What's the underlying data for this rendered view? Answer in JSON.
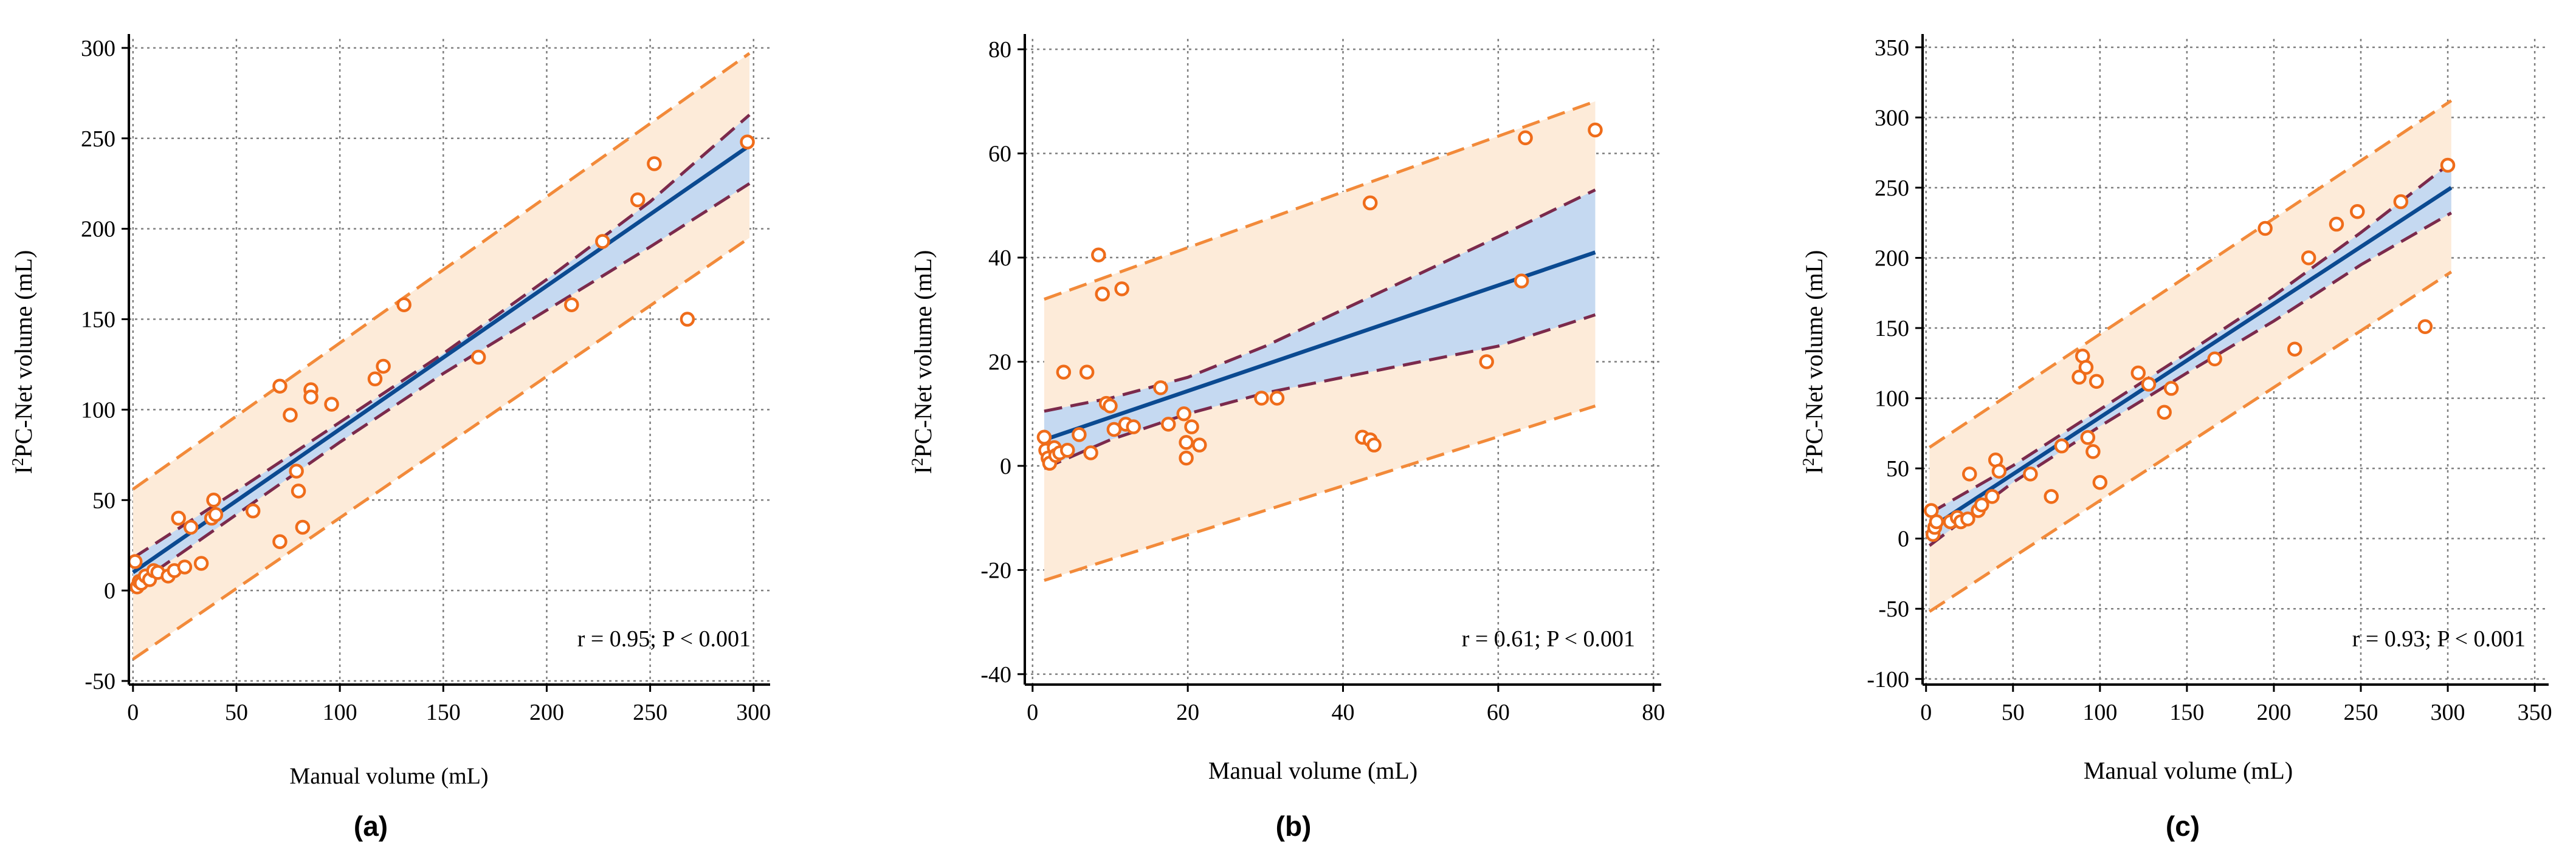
{
  "palette": {
    "pred_fill": "#fdebd9",
    "pred_line": "#f28a3a",
    "conf_fill": "#c5d9f1",
    "conf_line": "#7b2a4c",
    "fit_line": "#0b4a91",
    "point": "#ef6c1a",
    "grid": "#7f7f7f"
  },
  "chart_data": [
    {
      "type": "scatter",
      "panel": "(a)",
      "xlabel": "Manual volume (mL)",
      "ylabel_base": "I",
      "ylabel_sup": "2",
      "ylabel_rest": "PC-Net volume (mL)",
      "annotation": "r = 0.95; P < 0.001",
      "xlim": [
        -2,
        308
      ],
      "ylim": [
        -52,
        305
      ],
      "xticks": [
        0,
        50,
        100,
        150,
        200,
        250,
        300
      ],
      "yticks": [
        -50,
        0,
        50,
        100,
        150,
        200,
        250,
        300
      ],
      "xtick_labels": [
        "0",
        "50",
        "100",
        "150",
        "200",
        "250",
        "300"
      ],
      "ytick_labels": [
        "-50",
        "0",
        "50",
        "100",
        "150",
        "200",
        "250",
        "300"
      ],
      "fit_x": [
        0,
        298
      ],
      "fit_y": [
        10,
        246
      ],
      "conf_upper": [
        [
          0,
          18
        ],
        [
          50,
          55
        ],
        [
          100,
          93
        ],
        [
          150,
          131
        ],
        [
          200,
          172
        ],
        [
          250,
          215
        ],
        [
          298,
          263
        ]
      ],
      "conf_lower": [
        [
          0,
          2
        ],
        [
          50,
          42
        ],
        [
          100,
          82
        ],
        [
          150,
          120
        ],
        [
          200,
          155
        ],
        [
          250,
          190
        ],
        [
          298,
          225
        ]
      ],
      "pred_upper": [
        [
          0,
          56
        ],
        [
          298,
          297
        ]
      ],
      "pred_lower": [
        [
          0,
          -38
        ],
        [
          298,
          195
        ]
      ],
      "points": [
        [
          1,
          16
        ],
        [
          2,
          2
        ],
        [
          3,
          5
        ],
        [
          4,
          4
        ],
        [
          6,
          8
        ],
        [
          8,
          6
        ],
        [
          10,
          11
        ],
        [
          12,
          10
        ],
        [
          17,
          8
        ],
        [
          20,
          11
        ],
        [
          22,
          40
        ],
        [
          25,
          13
        ],
        [
          28,
          35
        ],
        [
          33,
          15
        ],
        [
          38,
          40
        ],
        [
          39,
          50
        ],
        [
          40,
          42
        ],
        [
          58,
          44
        ],
        [
          71,
          27
        ],
        [
          71,
          113
        ],
        [
          76,
          97
        ],
        [
          79,
          66
        ],
        [
          80,
          55
        ],
        [
          82,
          35
        ],
        [
          86,
          111
        ],
        [
          86,
          107
        ],
        [
          96,
          103
        ],
        [
          117,
          117
        ],
        [
          121,
          124
        ],
        [
          131,
          158
        ],
        [
          167,
          129
        ],
        [
          212,
          158
        ],
        [
          227,
          193
        ],
        [
          244,
          216
        ],
        [
          252,
          236
        ],
        [
          268,
          150
        ],
        [
          297,
          248
        ]
      ]
    },
    {
      "type": "scatter",
      "panel": "(b)",
      "xlabel": "Manual volume (mL)",
      "ylabel_base": "I",
      "ylabel_sup": "2",
      "ylabel_rest": "PC-Net volume (mL)",
      "annotation": "r = 0.61; P < 0.001",
      "xlim": [
        -1,
        81
      ],
      "ylim": [
        -42,
        82
      ],
      "xticks": [
        0,
        20,
        40,
        60,
        80
      ],
      "yticks": [
        -40,
        -20,
        0,
        20,
        40,
        60,
        80
      ],
      "xtick_labels": [
        "0",
        "20",
        "40",
        "60",
        "80"
      ],
      "ytick_labels": [
        "-40",
        "-20",
        "0",
        "20",
        "40",
        "60",
        "80"
      ],
      "fit_x": [
        1.5,
        72.5
      ],
      "fit_y": [
        5,
        41
      ],
      "conf_upper": [
        [
          1.5,
          10.5
        ],
        [
          10,
          13
        ],
        [
          20,
          17
        ],
        [
          30,
          23
        ],
        [
          40,
          30
        ],
        [
          50,
          37
        ],
        [
          60,
          44
        ],
        [
          72.5,
          53
        ]
      ],
      "conf_lower": [
        [
          1.5,
          -0.5
        ],
        [
          10,
          5
        ],
        [
          20,
          10
        ],
        [
          30,
          14
        ],
        [
          40,
          17
        ],
        [
          50,
          20
        ],
        [
          60,
          23
        ],
        [
          72.5,
          29
        ]
      ],
      "pred_upper": [
        [
          1.5,
          32
        ],
        [
          72.5,
          70
        ]
      ],
      "pred_lower": [
        [
          1.5,
          -22
        ],
        [
          72.5,
          11.5
        ]
      ],
      "points": [
        [
          1.5,
          5.5
        ],
        [
          1.7,
          3
        ],
        [
          2,
          1.5
        ],
        [
          2.2,
          0.5
        ],
        [
          2.8,
          3.5
        ],
        [
          3,
          2
        ],
        [
          3.5,
          2.5
        ],
        [
          4,
          18
        ],
        [
          4.5,
          3
        ],
        [
          6,
          6
        ],
        [
          7,
          18
        ],
        [
          7.5,
          2.5
        ],
        [
          8.5,
          40.5
        ],
        [
          9,
          33
        ],
        [
          9.5,
          12
        ],
        [
          10,
          11.5
        ],
        [
          10.5,
          7
        ],
        [
          11.5,
          34
        ],
        [
          12,
          8
        ],
        [
          13,
          7.5
        ],
        [
          16.5,
          15
        ],
        [
          17.5,
          8
        ],
        [
          19.5,
          10
        ],
        [
          19.8,
          4.5
        ],
        [
          19.8,
          1.5
        ],
        [
          20.5,
          7.5
        ],
        [
          21.5,
          4
        ],
        [
          29.5,
          13
        ],
        [
          31.5,
          13
        ],
        [
          42.5,
          5.5
        ],
        [
          43.5,
          50.5
        ],
        [
          43.5,
          5
        ],
        [
          44,
          4
        ],
        [
          58.5,
          20
        ],
        [
          63,
          35.5
        ],
        [
          63.5,
          63
        ],
        [
          72.5,
          64.5
        ]
      ]
    },
    {
      "type": "scatter",
      "panel": "(c)",
      "xlabel": "Manual volume (mL)",
      "ylabel_base": "I",
      "ylabel_sup": "2",
      "ylabel_rest": "PC-Net volume (mL)",
      "annotation": "r = 0.93; P < 0.001",
      "xlim": [
        -2,
        358
      ],
      "ylim": [
        -104,
        356
      ],
      "xticks": [
        0,
        50,
        100,
        150,
        200,
        250,
        300,
        350
      ],
      "yticks": [
        -100,
        -50,
        0,
        50,
        100,
        150,
        200,
        250,
        300,
        350
      ],
      "xtick_labels": [
        "0",
        "50",
        "100",
        "150",
        "200",
        "250",
        "300",
        "350"
      ],
      "ytick_labels": [
        "-100",
        "-50",
        "0",
        "50",
        "100",
        "150",
        "200",
        "250",
        "300",
        "350"
      ],
      "fit_x": [
        2,
        302
      ],
      "fit_y": [
        7,
        250
      ],
      "conf_upper": [
        [
          2,
          18
        ],
        [
          50,
          52
        ],
        [
          100,
          92
        ],
        [
          150,
          132
        ],
        [
          200,
          173
        ],
        [
          250,
          218
        ],
        [
          302,
          268
        ]
      ],
      "conf_lower": [
        [
          2,
          -5
        ],
        [
          50,
          40
        ],
        [
          100,
          80
        ],
        [
          150,
          118
        ],
        [
          200,
          155
        ],
        [
          250,
          195
        ],
        [
          302,
          232
        ]
      ],
      "pred_upper": [
        [
          2,
          65
        ],
        [
          302,
          312
        ]
      ],
      "pred_lower": [
        [
          2,
          -52
        ],
        [
          302,
          190
        ]
      ],
      "points": [
        [
          3,
          20
        ],
        [
          4,
          3
        ],
        [
          5,
          8
        ],
        [
          6,
          12
        ],
        [
          14,
          12
        ],
        [
          18,
          15
        ],
        [
          20,
          12
        ],
        [
          24,
          14
        ],
        [
          25,
          46
        ],
        [
          30,
          20
        ],
        [
          32,
          24
        ],
        [
          38,
          30
        ],
        [
          40,
          56
        ],
        [
          42,
          48
        ],
        [
          60,
          46
        ],
        [
          72,
          30
        ],
        [
          78,
          66
        ],
        [
          88,
          115
        ],
        [
          90,
          130
        ],
        [
          92,
          122
        ],
        [
          93,
          72
        ],
        [
          96,
          62
        ],
        [
          98,
          112
        ],
        [
          100,
          40
        ],
        [
          122,
          118
        ],
        [
          128,
          110
        ],
        [
          137,
          90
        ],
        [
          141,
          107
        ],
        [
          166,
          128
        ],
        [
          195,
          221
        ],
        [
          212,
          135
        ],
        [
          220,
          200
        ],
        [
          236,
          224
        ],
        [
          248,
          233
        ],
        [
          273,
          240
        ],
        [
          287,
          151
        ],
        [
          300,
          266
        ]
      ]
    }
  ]
}
